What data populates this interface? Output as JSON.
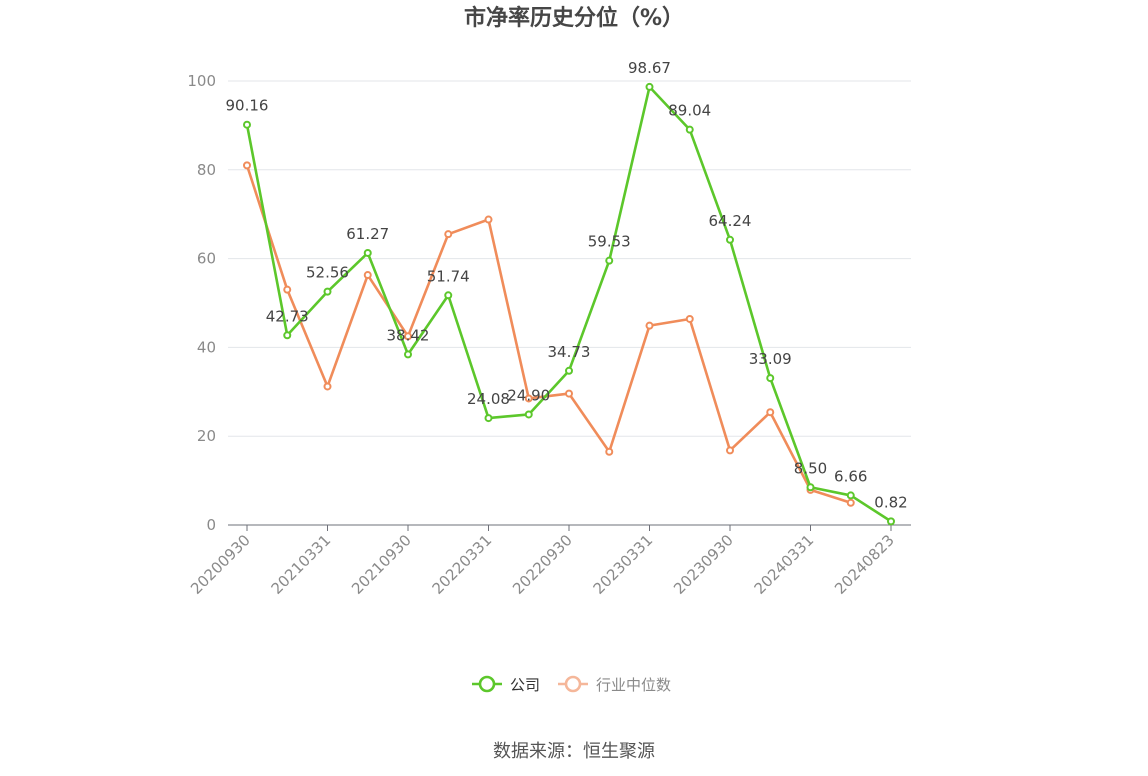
{
  "chart_data": {
    "type": "line",
    "title": "市净率历史分位（%）",
    "xlabel": "",
    "ylabel": "",
    "ylim": [
      0,
      100
    ],
    "yticks": [
      0,
      20,
      40,
      60,
      80,
      100
    ],
    "x": [
      "20200930",
      "20201231",
      "20210331",
      "20210630",
      "20210930",
      "20211231",
      "20220331",
      "20220630",
      "20220930",
      "20221231",
      "20230331",
      "20230630",
      "20230930",
      "20231231",
      "20240331",
      "20240630",
      "20240823"
    ],
    "xtick_labels": [
      "20200930",
      "20210331",
      "20210930",
      "20220331",
      "20220930",
      "20230331",
      "20230930",
      "20240331",
      "20240823"
    ],
    "grid": true,
    "legend_position": "bottom-center",
    "series": [
      {
        "name": "公司",
        "color": "#5cc72b",
        "values": [
          90.16,
          42.73,
          52.56,
          61.27,
          38.42,
          51.74,
          24.08,
          24.9,
          34.73,
          59.53,
          98.67,
          89.04,
          64.24,
          33.09,
          8.5,
          6.66,
          0.82
        ],
        "labels": [
          "90.16",
          "42.73",
          "52.56",
          "61.27",
          "38.42",
          "51.74",
          "24.08",
          "24.90",
          "34.73",
          "59.53",
          "98.67",
          "89.04",
          "64.24",
          "33.09",
          "8.50",
          "6.66",
          "0.82"
        ]
      },
      {
        "name": "行业中位数",
        "color": "#f08c5a",
        "values": [
          81.0,
          53.0,
          31.2,
          56.3,
          42.5,
          65.5,
          68.8,
          28.5,
          29.6,
          16.5,
          44.9,
          46.4,
          16.8,
          25.4,
          7.9,
          5.0,
          null
        ]
      }
    ],
    "source": "数据来源：恒生聚源"
  }
}
